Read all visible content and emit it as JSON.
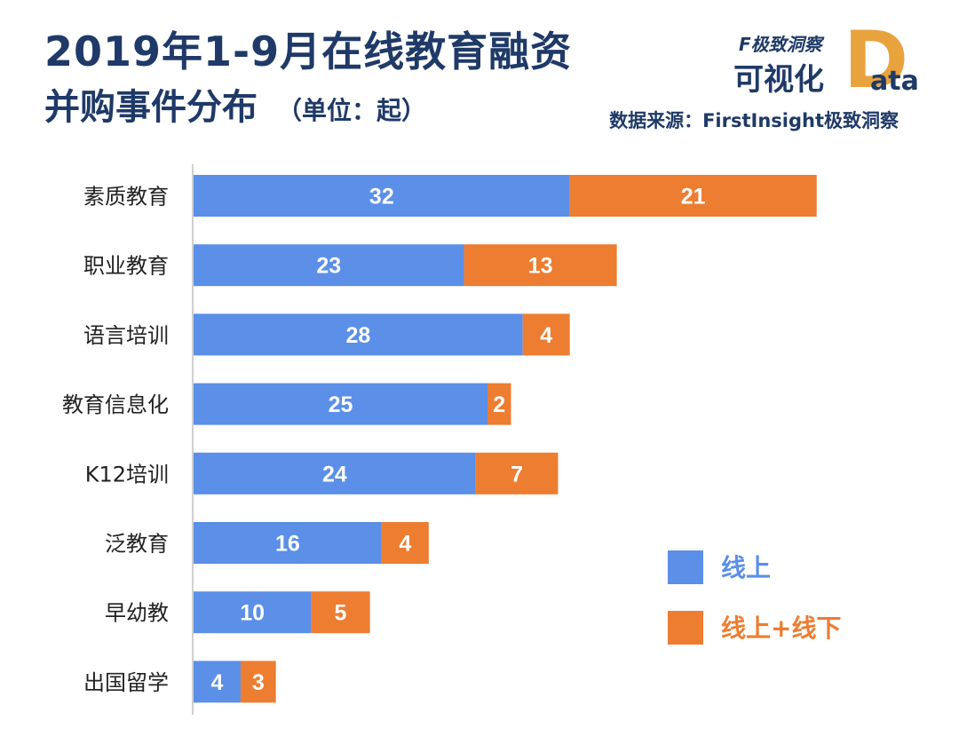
{
  "header": {
    "title_line1": "2019年1-9月在线教育融资",
    "title_line2": "并购事件分布",
    "unit": "（单位：起）"
  },
  "brand": {
    "logo_text": "F极致洞察",
    "cn": "可视化",
    "d": "D",
    "ata": "ata"
  },
  "source": "数据来源：FirstInsight极致洞察",
  "colors": {
    "online": "#5b8fe8",
    "both": "#ed7d31",
    "title": "#1f3a68",
    "axis": "#d0d0d0"
  },
  "chart_data": {
    "type": "bar",
    "orientation": "horizontal",
    "stacked": true,
    "categories": [
      "素质教育",
      "职业教育",
      "语言培训",
      "教育信息化",
      "K12培训",
      "泛教育",
      "早幼教",
      "出国留学"
    ],
    "series": [
      {
        "name": "线上",
        "values": [
          32,
          23,
          28,
          25,
          24,
          16,
          10,
          4
        ]
      },
      {
        "name": "线上+线下",
        "values": [
          21,
          13,
          4,
          2,
          7,
          4,
          5,
          3
        ]
      }
    ],
    "legend_position": "bottom-right"
  }
}
